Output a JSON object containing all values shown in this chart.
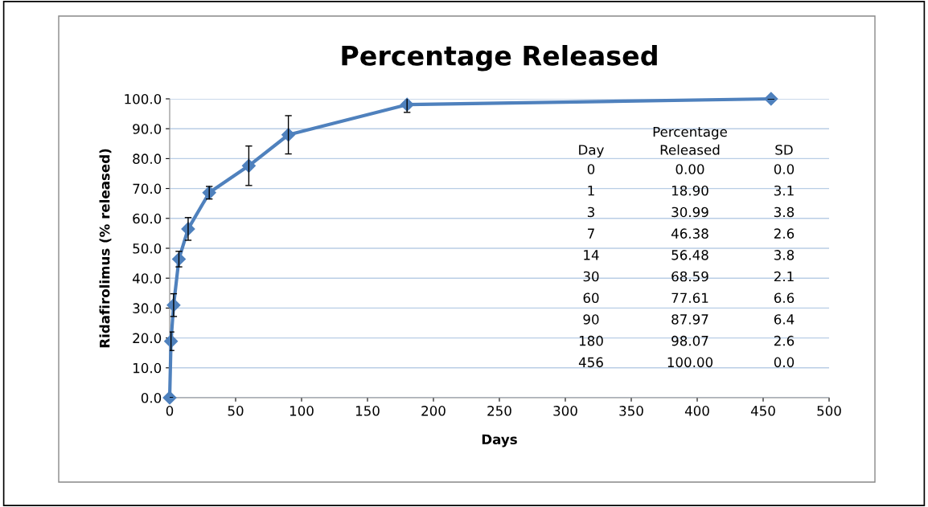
{
  "chart_data": {
    "type": "line",
    "title": "Percentage Released",
    "xlabel": "Days",
    "ylabel": "Ridafirolimus (% released)",
    "x": [
      0,
      1,
      3,
      7,
      14,
      30,
      60,
      90,
      180,
      456
    ],
    "series": [
      {
        "color": "#4f81bd",
        "values": [
          0.0,
          18.9,
          30.99,
          46.38,
          56.48,
          68.59,
          77.61,
          87.97,
          98.07,
          100.0
        ],
        "errors": [
          0.0,
          3.1,
          3.8,
          2.6,
          3.8,
          2.1,
          6.6,
          6.4,
          2.6,
          0.0
        ]
      }
    ],
    "annotations": [
      "Day",
      "Percentage\nReleased",
      "SD",
      "0",
      "0.00",
      "0.0",
      "1",
      "18.90",
      "3.1",
      "3",
      "30.99",
      "3.8",
      "7",
      "46.38",
      "2.6",
      "14",
      "56.48",
      "3.8",
      "30",
      "68.59",
      "2.1",
      "60",
      "77.61",
      "6.6",
      "90",
      "87.97",
      "6.4",
      "180",
      "98.07",
      "2.6",
      "456",
      "100.00",
      "0.0"
    ],
    "xlim": [
      0,
      500
    ],
    "xticks": [
      0,
      50,
      100,
      150,
      200,
      250,
      300,
      350,
      400,
      450,
      500
    ],
    "ylim": [
      0,
      100
    ],
    "yticks": [
      {
        "value": 0,
        "label": "0.0"
      },
      {
        "value": 10,
        "label": "10.0"
      },
      {
        "value": 20,
        "label": "20.0"
      },
      {
        "value": 30,
        "label": "30.0"
      },
      {
        "value": 40,
        "label": "40.0"
      },
      {
        "value": 50,
        "label": "50.0"
      },
      {
        "value": 60,
        "label": "60.0"
      },
      {
        "value": 70,
        "label": "70.0"
      },
      {
        "value": 80,
        "label": "80.0"
      },
      {
        "value": 90,
        "label": "90.0"
      },
      {
        "value": 100,
        "label": "100.0"
      }
    ],
    "grid": "y",
    "marker": "diamond",
    "line_style": "solid",
    "legend": false
  }
}
